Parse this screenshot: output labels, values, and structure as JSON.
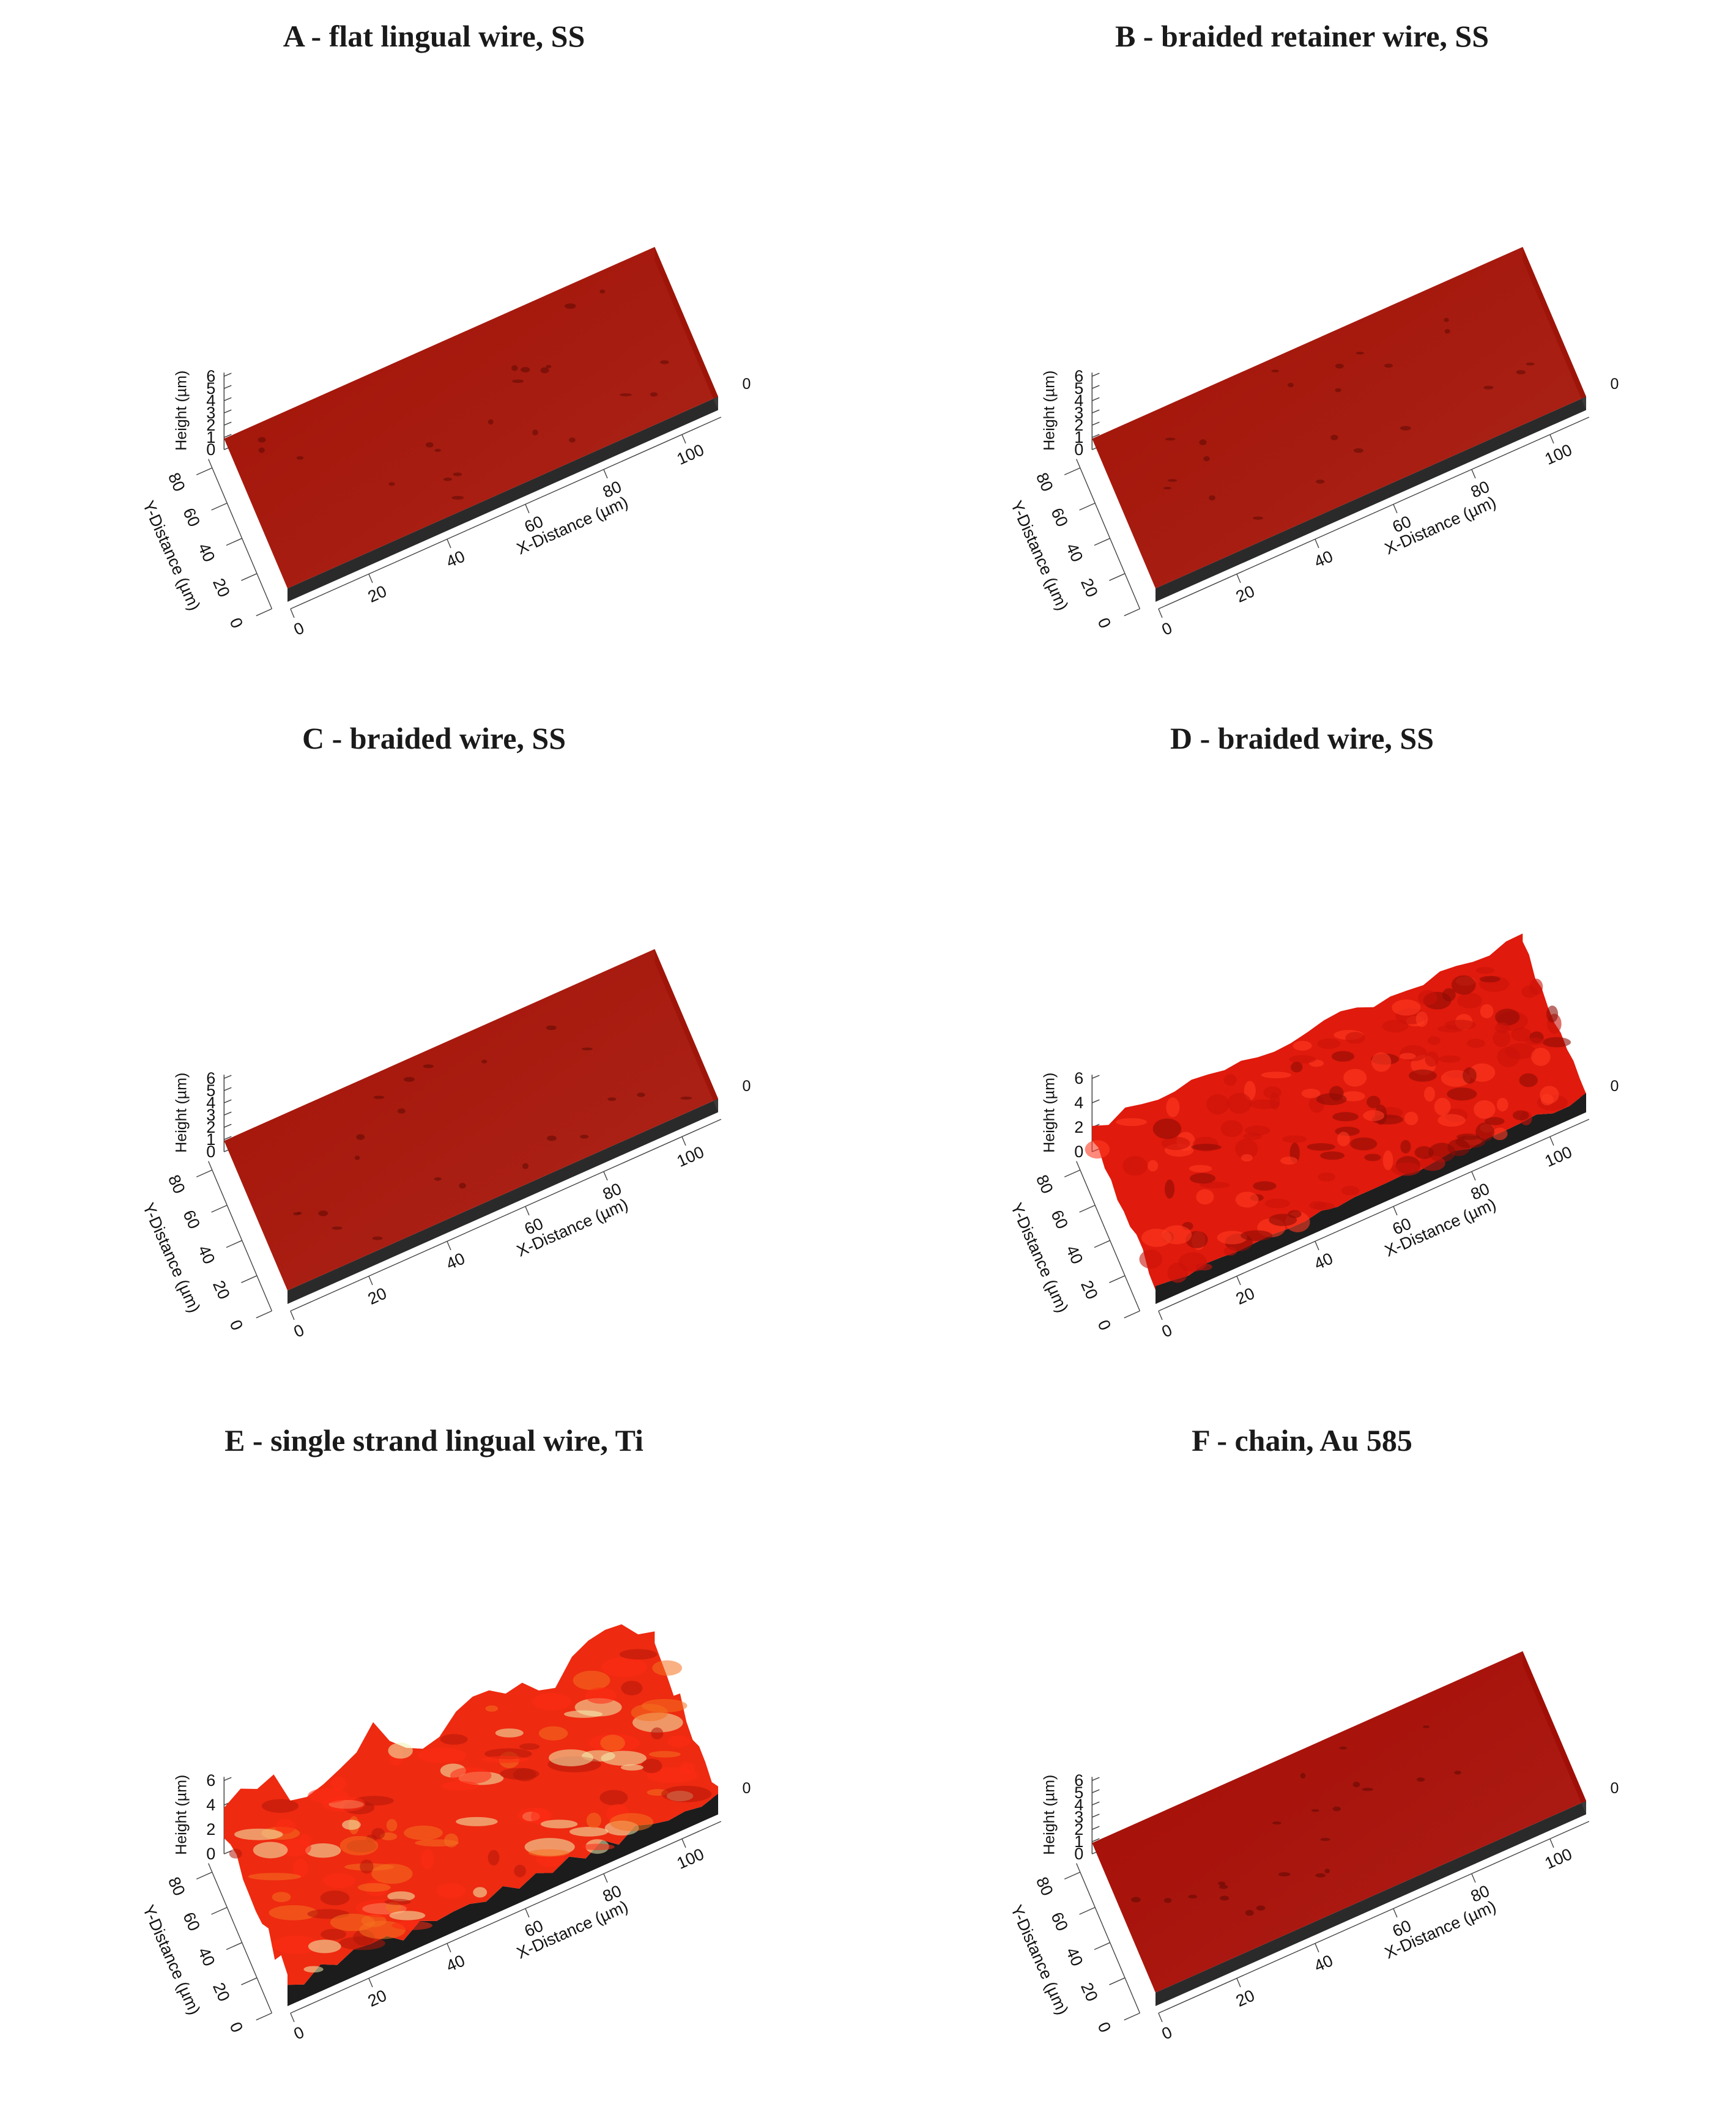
{
  "chart_data": [
    {
      "type": "surface",
      "title": "A - flat lingual wire, SS",
      "zlabel": "Height (µm)",
      "ylabel": "Y-Distance (µm)",
      "xlabel": "X-Distance (µm)",
      "zticks": [
        "0",
        "1",
        "2",
        "3",
        "4",
        "5",
        "6"
      ],
      "yticks": [
        "0",
        "20",
        "40",
        "60",
        "80"
      ],
      "xticks": [
        "0",
        "20",
        "40",
        "60",
        "80",
        "100"
      ],
      "zlim": [
        0,
        6
      ],
      "xlim": [
        0,
        110
      ],
      "ylim": [
        0,
        85
      ],
      "colors": {
        "top": "#a31206",
        "front": "#2a2a2a",
        "right": "#3a3a3a"
      },
      "surface": "smooth"
    },
    {
      "type": "surface",
      "title": "B - braided retainer wire, SS",
      "zlabel": "Height (µm)",
      "ylabel": "Y-Distance (µm)",
      "xlabel": "X-Distance (µm)",
      "zticks": [
        "0",
        "1",
        "2",
        "3",
        "4",
        "5",
        "6"
      ],
      "yticks": [
        "0",
        "20",
        "40",
        "60",
        "80"
      ],
      "xticks": [
        "0",
        "20",
        "40",
        "60",
        "80",
        "100"
      ],
      "zlim": [
        0,
        6
      ],
      "xlim": [
        0,
        110
      ],
      "ylim": [
        0,
        85
      ],
      "colors": {
        "top": "#a31206",
        "front": "#2a2a2a",
        "right": "#3a3a3a"
      },
      "surface": "smooth"
    },
    {
      "type": "surface",
      "title": "C - braided wire, SS",
      "zlabel": "Height (µm)",
      "ylabel": "Y-Distance (µm)",
      "xlabel": "X-Distance (µm)",
      "zticks": [
        "0",
        "1",
        "2",
        "3",
        "4",
        "5",
        "6"
      ],
      "yticks": [
        "0",
        "20",
        "40",
        "60",
        "80"
      ],
      "xticks": [
        "0",
        "20",
        "40",
        "60",
        "80",
        "100"
      ],
      "zlim": [
        0,
        6
      ],
      "xlim": [
        0,
        110
      ],
      "ylim": [
        0,
        85
      ],
      "colors": {
        "top": "#a51307",
        "front": "#2a2a2a",
        "right": "#3a3a3a"
      },
      "surface": "smooth"
    },
    {
      "type": "surface",
      "title": "D - braided wire, SS",
      "zlabel": "Height (µm)",
      "ylabel": "Y-Distance (µm)",
      "xlabel": "X-Distance (µm)",
      "zticks": [
        "0",
        "2",
        "4",
        "6"
      ],
      "yticks": [
        "0",
        "20",
        "40",
        "60",
        "80"
      ],
      "xticks": [
        "0",
        "20",
        "40",
        "60",
        "80",
        "100"
      ],
      "zlim": [
        0,
        6
      ],
      "xlim": [
        0,
        110
      ],
      "ylim": [
        0,
        85
      ],
      "colors": {
        "top": "#e01a0c",
        "front": "#1e1e1e",
        "right": "#2b2b2b"
      },
      "surface": "rough"
    },
    {
      "type": "surface",
      "title": "E - single strand lingual wire, Ti",
      "zlabel": "Height (µm)",
      "ylabel": "Y-Distance (µm)",
      "xlabel": "X-Distance (µm)",
      "zticks": [
        "0",
        "2",
        "4",
        "6"
      ],
      "yticks": [
        "0",
        "20",
        "40",
        "60",
        "80"
      ],
      "xticks": [
        "0",
        "20",
        "40",
        "60",
        "80",
        "100"
      ],
      "zlim": [
        0,
        6
      ],
      "xlim": [
        0,
        110
      ],
      "ylim": [
        0,
        85
      ],
      "colors": {
        "top": "#ee2a10",
        "front": "#1c1c1c",
        "right": "#2a2a2a",
        "highlight": "#f3f0b0"
      },
      "surface": "very-rough"
    },
    {
      "type": "surface",
      "title": "F - chain, Au 585",
      "zlabel": "Height (µm)",
      "ylabel": "Y-Distance (µm)",
      "xlabel": "X-Distance (µm)",
      "zticks": [
        "0",
        "1",
        "2",
        "3",
        "4",
        "5",
        "6"
      ],
      "yticks": [
        "0",
        "20",
        "40",
        "60",
        "80"
      ],
      "xticks": [
        "0",
        "20",
        "40",
        "60",
        "80",
        "100"
      ],
      "zlim": [
        0,
        6
      ],
      "xlim": [
        0,
        110
      ],
      "ylim": [
        0,
        85
      ],
      "colors": {
        "top": "#a50c04",
        "front": "#2a2a2a",
        "right": "#3a3a3a"
      },
      "surface": "smooth"
    }
  ]
}
